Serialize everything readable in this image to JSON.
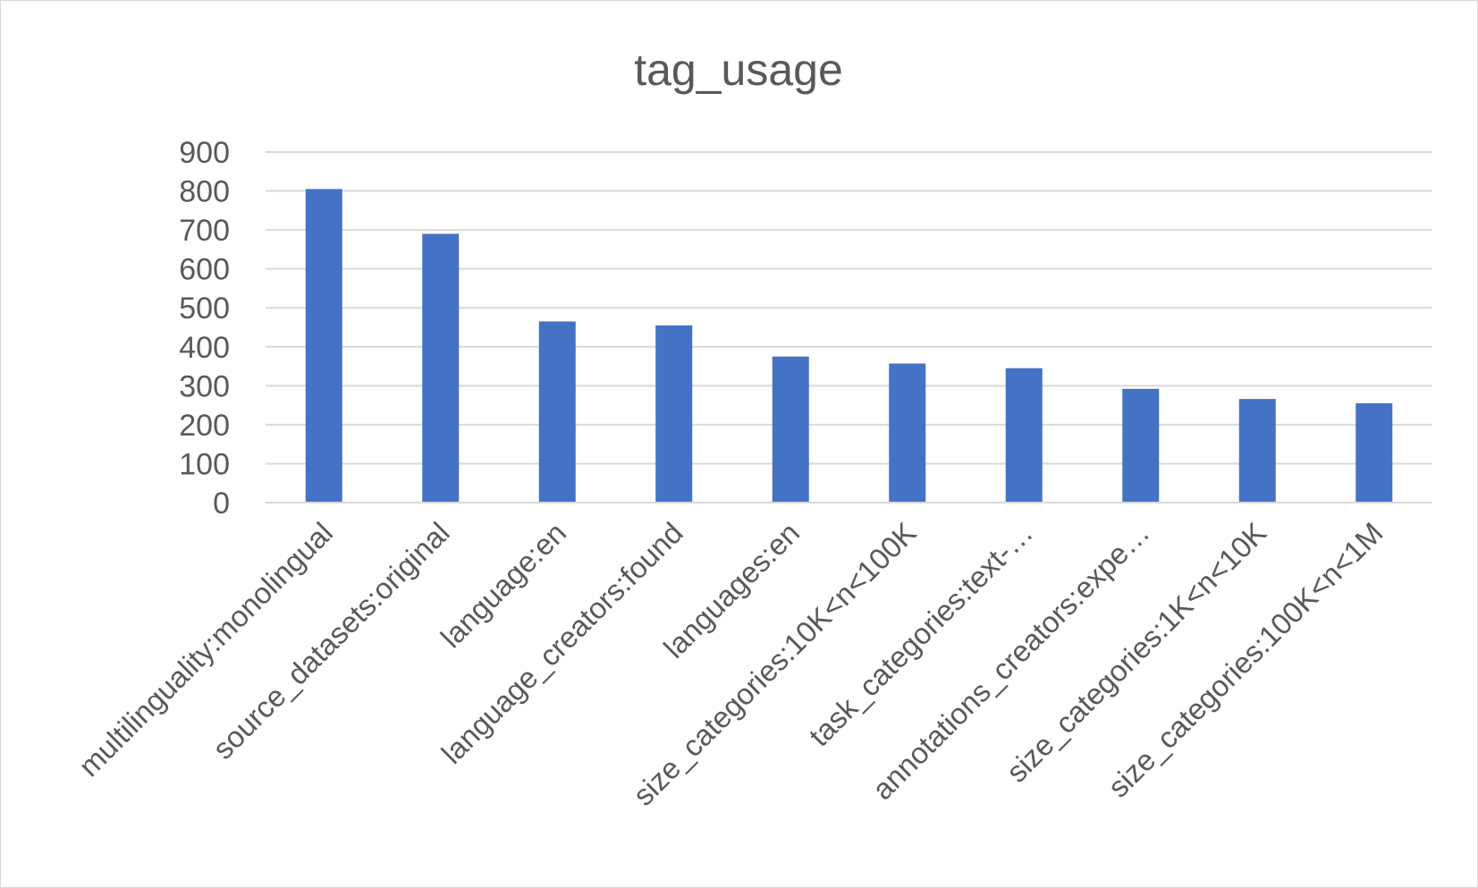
{
  "chart_data": {
    "type": "bar",
    "title": "tag_usage",
    "xlabel": "",
    "ylabel": "",
    "categories": [
      "multilinguality:monolingual",
      "source_datasets:original",
      "language:en",
      "language_creators:found",
      "languages:en",
      "size_categories:10K<n<100K",
      "task_categories:text-…",
      "annotations_creators:expe…",
      "size_categories:1K<n<10K",
      "size_categories:100K<n<1M"
    ],
    "series": [
      {
        "values": [
          805,
          690,
          465,
          455,
          375,
          357,
          345,
          292,
          266,
          255
        ]
      }
    ],
    "ylim": [
      0,
      900
    ],
    "yticks": [
      "0",
      "100",
      "200",
      "300",
      "400",
      "500",
      "600",
      "700",
      "800",
      "900"
    ],
    "grid": true,
    "legend": "none",
    "bar_color": "#4472c4"
  }
}
